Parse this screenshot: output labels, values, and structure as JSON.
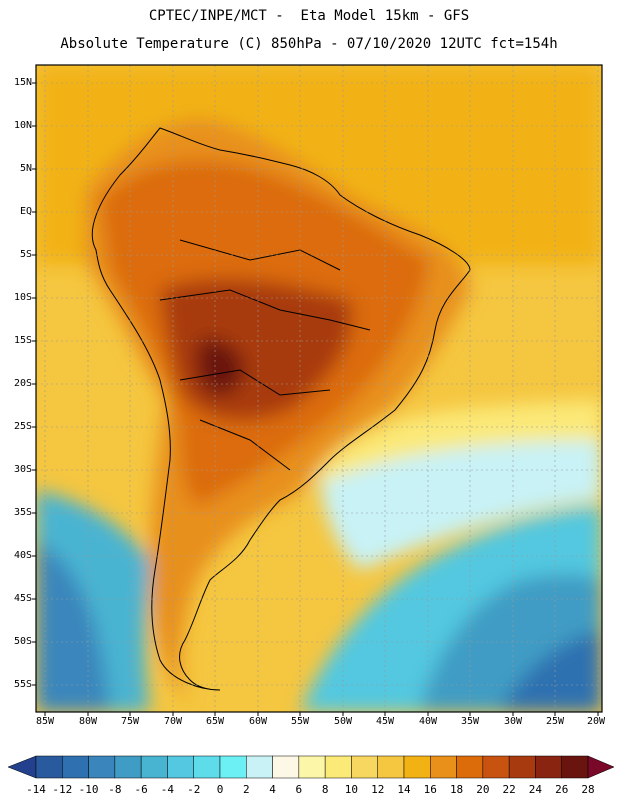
{
  "header": {
    "title_line1": "CPTEC/INPE/MCT -  Eta Model 15km - GFS",
    "title_line2": "Absolute Temperature (C) 850hPa - 07/10/2020 12UTC fct=154h"
  },
  "map": {
    "variable": "Absolute Temperature",
    "units": "C",
    "level": "850hPa",
    "lat_labels": [
      "15N",
      "10N",
      "5N",
      "EQ",
      "5S",
      "10S",
      "15S",
      "20S",
      "25S",
      "30S",
      "35S",
      "40S",
      "45S",
      "50S",
      "55S"
    ],
    "lon_labels": [
      "85W",
      "80W",
      "75W",
      "70W",
      "65W",
      "60W",
      "55W",
      "50W",
      "45W",
      "40W",
      "35W",
      "30W",
      "25W",
      "20W"
    ]
  },
  "colorbar": {
    "levels": [
      "-14",
      "-12",
      "-10",
      "-8",
      "-6",
      "-4",
      "-2",
      "0",
      "2",
      "4",
      "6",
      "8",
      "10",
      "12",
      "14",
      "16",
      "18",
      "20",
      "22",
      "24",
      "26",
      "28"
    ],
    "colors": [
      "#22408e",
      "#2a5a9e",
      "#2f71b0",
      "#3a86bc",
      "#3f9cc4",
      "#48b4d2",
      "#53c8e0",
      "#5edcea",
      "#6cf0f4",
      "#c8f2f6",
      "#fdf8e6",
      "#fcf7a8",
      "#fbe978",
      "#f8d760",
      "#f5c640",
      "#f2b214",
      "#e8901a",
      "#dc6c0a",
      "#c85210",
      "#a83a10",
      "#882410",
      "#6a1410",
      "#7a0828"
    ]
  }
}
